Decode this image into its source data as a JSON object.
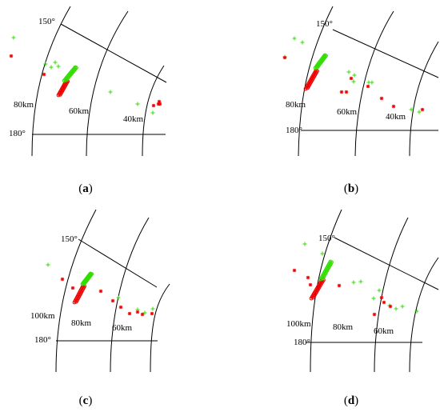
{
  "colors": {
    "green": "#33dd00",
    "red": "#ee0000",
    "line": "#000000"
  },
  "panels": [
    {
      "caption_letter": "a",
      "labels": {
        "angle_top": "150°",
        "angle_left": "180°",
        "ranges": [
          "80km",
          "60km",
          "40km"
        ]
      },
      "scatter": {
        "green": [
          [
            17,
            47
          ],
          [
            57,
            80
          ],
          [
            64,
            84
          ],
          [
            69,
            78
          ],
          [
            73,
            83
          ],
          [
            138,
            115
          ],
          [
            172,
            130
          ],
          [
            191,
            141
          ]
        ],
        "red": [
          [
            14,
            70
          ],
          [
            55,
            93
          ],
          [
            192,
            132
          ],
          [
            198,
            130
          ],
          [
            199,
            127
          ],
          [
            200,
            130
          ]
        ]
      },
      "streak": {
        "green": [
          [
            81,
            101
          ],
          [
            95,
            84
          ]
        ],
        "red": [
          [
            74,
            119
          ],
          [
            84,
            101
          ]
        ]
      }
    },
    {
      "caption_letter": "b",
      "labels": {
        "angle_top": "150°",
        "angle_left": "180°",
        "ranges": [
          "80km",
          "60km",
          "40km"
        ]
      },
      "scatter": {
        "green": [
          [
            356,
            71
          ],
          [
            368,
            48
          ],
          [
            378,
            53
          ],
          [
            436,
            90
          ],
          [
            443,
            94
          ],
          [
            442,
            102
          ],
          [
            461,
            103
          ],
          [
            465,
            103
          ],
          [
            514,
            137
          ],
          [
            524,
            140
          ]
        ],
        "red": [
          [
            356,
            72
          ],
          [
            427,
            115
          ],
          [
            433,
            115
          ],
          [
            439,
            98
          ],
          [
            460,
            108
          ],
          [
            477,
            123
          ],
          [
            492,
            133
          ],
          [
            528,
            137
          ]
        ]
      },
      "streak": {
        "green": [
          [
            395,
            85
          ],
          [
            407,
            69
          ]
        ],
        "red": [
          [
            383,
            111
          ],
          [
            396,
            88
          ]
        ]
      }
    },
    {
      "caption_letter": "c",
      "labels": {
        "angle_top": "150°",
        "angle_left": "180°",
        "ranges": [
          "100km",
          "80km",
          "60km"
        ]
      },
      "scatter": {
        "green": [
          [
            60,
            331
          ],
          [
            148,
            372
          ],
          [
            172,
            387
          ],
          [
            181,
            391
          ],
          [
            191,
            386
          ]
        ],
        "red": [
          [
            78,
            349
          ],
          [
            91,
            360
          ],
          [
            126,
            364
          ],
          [
            141,
            376
          ],
          [
            151,
            384
          ],
          [
            162,
            392
          ],
          [
            172,
            390
          ],
          [
            178,
            393
          ],
          [
            190,
            392
          ]
        ]
      },
      "streak": {
        "green": [
          [
            104,
            355
          ],
          [
            114,
            342
          ]
        ],
        "red": [
          [
            94,
            378
          ],
          [
            105,
            357
          ]
        ]
      }
    },
    {
      "caption_letter": "d",
      "labels": {
        "angle_top": "150°",
        "angle_left": "180°",
        "ranges": [
          "100km",
          "80km",
          "60km"
        ]
      },
      "scatter": {
        "green": [
          [
            381,
            305
          ],
          [
            403,
            317
          ],
          [
            442,
            353
          ],
          [
            451,
            352
          ],
          [
            474,
            363
          ],
          [
            467,
            373
          ],
          [
            487,
            382
          ],
          [
            495,
            386
          ],
          [
            503,
            383
          ],
          [
            521,
            389
          ]
        ],
        "red": [
          [
            368,
            338
          ],
          [
            385,
            347
          ],
          [
            388,
            356
          ],
          [
            424,
            357
          ],
          [
            477,
            372
          ],
          [
            480,
            378
          ],
          [
            488,
            383
          ],
          [
            468,
            393
          ]
        ]
      },
      "streak": {
        "green": [
          [
            402,
            349
          ],
          [
            414,
            327
          ]
        ],
        "red": [
          [
            390,
            373
          ],
          [
            404,
            349
          ]
        ]
      }
    }
  ]
}
